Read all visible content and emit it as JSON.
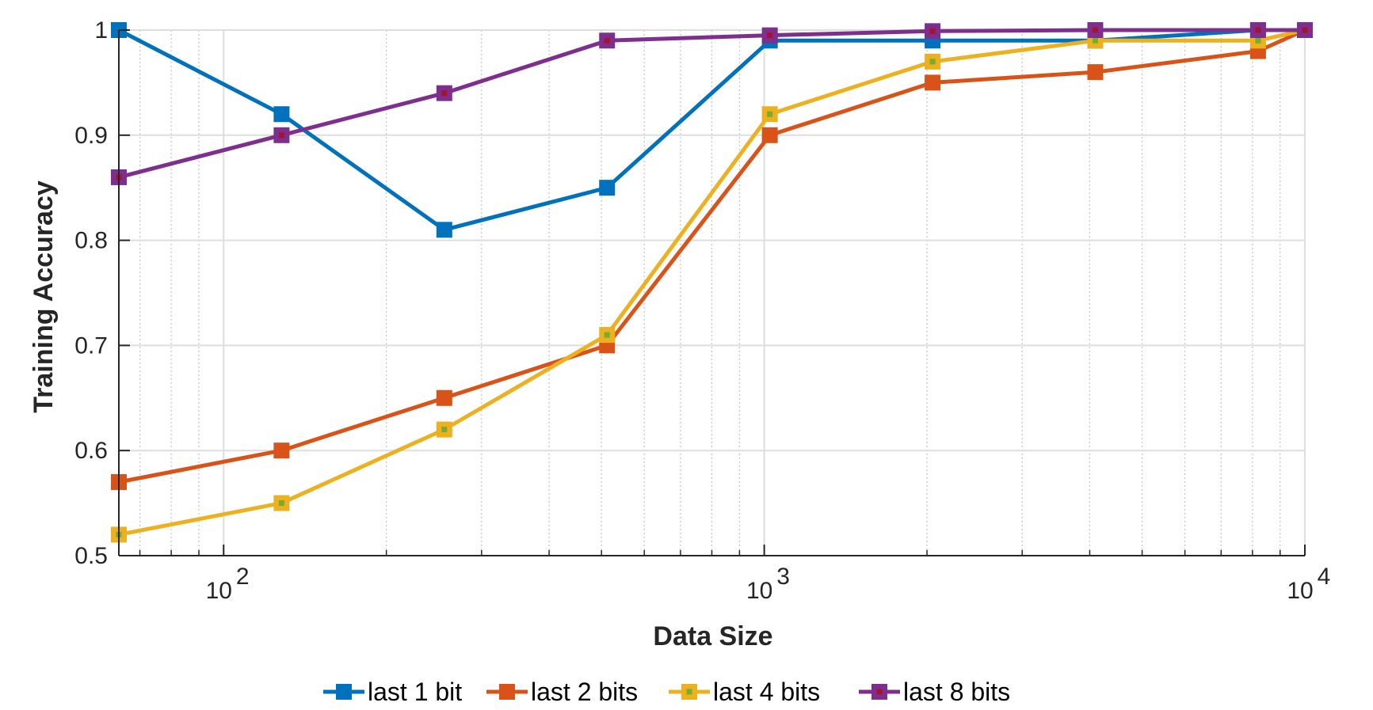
{
  "chart_data": {
    "type": "line",
    "title": "",
    "xlabel": "Data Size",
    "ylabel": "Training Accuracy",
    "x_scale": "log",
    "xlim": [
      64,
      10000
    ],
    "ylim": [
      0.5,
      1.0
    ],
    "grid": true,
    "legend_position": "bottom-outside",
    "x_ticks": [
      100,
      1000,
      10000
    ],
    "x_tick_labels": [
      {
        "base": "10",
        "exp": "2"
      },
      {
        "base": "10",
        "exp": "3"
      },
      {
        "base": "10",
        "exp": "4"
      }
    ],
    "y_ticks": [
      0.5,
      0.6,
      0.7,
      0.8,
      0.9,
      1.0
    ],
    "y_tick_labels": [
      "0.5",
      "0.6",
      "0.7",
      "0.8",
      "0.9",
      "1"
    ],
    "x": [
      64,
      128,
      256,
      512,
      1024,
      2048,
      4096,
      8192,
      10000
    ],
    "series": [
      {
        "name": "last 1 bit",
        "color": "#0072BD",
        "marker_inner": "#0072BD",
        "values": [
          1.0,
          0.92,
          0.81,
          0.85,
          0.99,
          0.99,
          0.99,
          1.0,
          1.0
        ]
      },
      {
        "name": "last 2 bits",
        "color": "#D95319",
        "marker_inner": "#D95319",
        "values": [
          0.57,
          0.6,
          0.65,
          0.7,
          0.9,
          0.95,
          0.96,
          0.98,
          1.0
        ]
      },
      {
        "name": "last 4 bits",
        "color": "#EDB120",
        "marker_inner": "#77AC30",
        "values": [
          0.52,
          0.55,
          0.62,
          0.71,
          0.92,
          0.97,
          0.99,
          0.99,
          1.0
        ]
      },
      {
        "name": "last 8 bits",
        "color": "#7E2F8E",
        "marker_inner": "#A2142F",
        "values": [
          0.86,
          0.9,
          0.94,
          0.99,
          0.995,
          0.999,
          1.0,
          1.0,
          1.0
        ]
      }
    ]
  }
}
